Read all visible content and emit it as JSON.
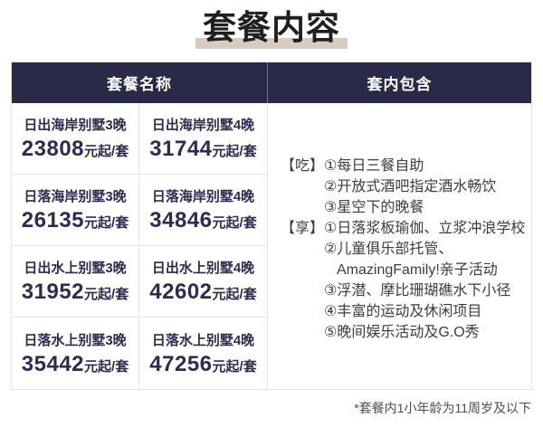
{
  "title": "套餐内容",
  "table": {
    "headers": {
      "name": "套餐名称",
      "included": "套内包含"
    },
    "price_suffix": "元起/套",
    "packages": [
      {
        "name": "日出海岸别墅3晚",
        "price": "23808"
      },
      {
        "name": "日出海岸别墅4晚",
        "price": "31744"
      },
      {
        "name": "日落海岸别墅3晚",
        "price": "26135"
      },
      {
        "name": "日落海岸别墅4晚",
        "price": "34846"
      },
      {
        "name": "日出水上别墅3晚",
        "price": "31952"
      },
      {
        "name": "日出水上别墅4晚",
        "price": "42602"
      },
      {
        "name": "日落水上别墅3晚",
        "price": "35442"
      },
      {
        "name": "日落水上别墅4晚",
        "price": "47256"
      }
    ],
    "included_lines": [
      {
        "label": "【吃】",
        "text": "①每日三餐自助"
      },
      {
        "label": "",
        "text": "②开放式酒吧指定酒水畅饮"
      },
      {
        "label": "",
        "text": "③星空下的晚餐"
      },
      {
        "label": "【享】",
        "text": "①日落浆板瑜伽、立浆冲浪学校"
      },
      {
        "label": "",
        "text": "②儿童俱乐部托管、"
      },
      {
        "label": "",
        "text": "AmazingFamily!亲子活动"
      },
      {
        "label": "",
        "text": "③浮潜、摩比珊瑚礁水下小径"
      },
      {
        "label": "",
        "text": "④丰富的运动及休闲项目"
      },
      {
        "label": "",
        "text": "⑤晚间娱乐活动及G.O秀"
      }
    ]
  },
  "footnote": "*套餐内1小年龄为11周岁及以下",
  "colors": {
    "header_bg": "#2a2948",
    "header_text": "#ffffff",
    "navy_text": "#2d2b52",
    "body_text": "#3d3d3d",
    "border": "#e4e4e6",
    "title_underline": "#d9cbc0",
    "footnote_text": "#4c4c4c",
    "title_text": "#1f1f1f"
  }
}
